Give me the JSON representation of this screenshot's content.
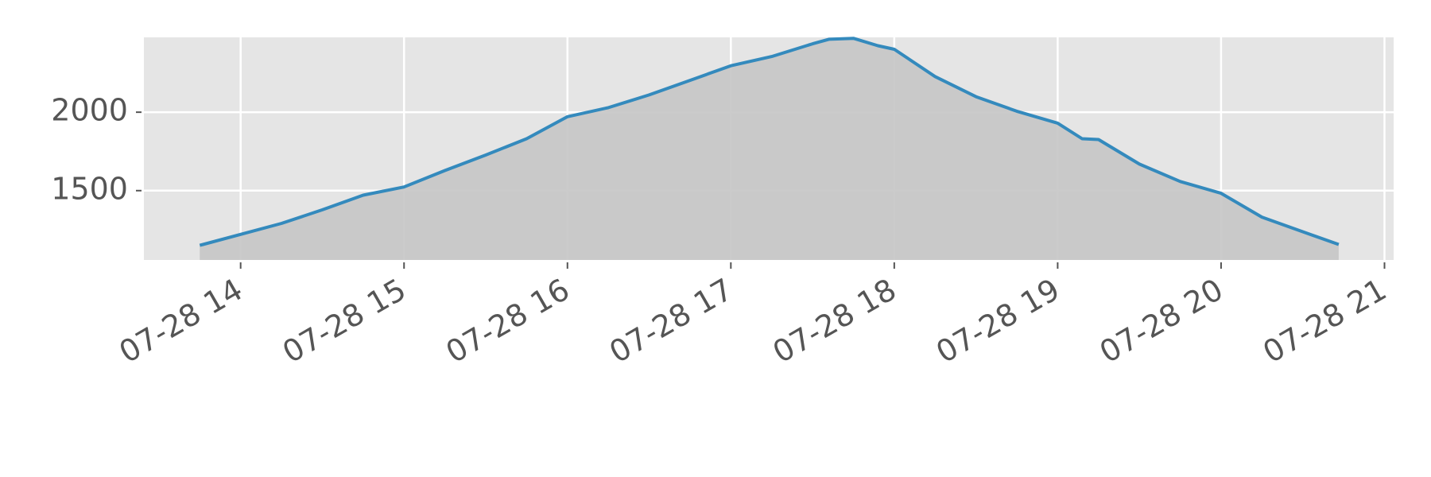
{
  "chart_data": {
    "type": "area",
    "x": [
      13.75,
      14.0,
      14.25,
      14.5,
      14.75,
      15.0,
      15.25,
      15.5,
      15.75,
      16.0,
      16.25,
      16.5,
      16.75,
      17.0,
      17.25,
      17.5,
      17.6,
      17.75,
      17.9,
      18.0,
      18.25,
      18.5,
      18.75,
      19.0,
      19.15,
      19.25,
      19.5,
      19.75,
      20.0,
      20.25,
      20.5,
      20.72
    ],
    "series": [
      {
        "color": "#348abd",
        "fill": "#c5c5c5",
        "values": [
          1151,
          1221,
          1291,
          1378,
          1471,
          1523,
          1628,
          1727,
          1831,
          1971,
          2029,
          2110,
          2203,
          2296,
          2355,
          2436,
          2465,
          2471,
          2424,
          2401,
          2227,
          2099,
          2006,
          1930,
          1831,
          1826,
          1669,
          1558,
          1483,
          1331,
          1238,
          1157
        ]
      }
    ],
    "xlim": [
      13.408,
      21.056
    ],
    "xticks": [
      {
        "value": 14,
        "label": "07-28 14"
      },
      {
        "value": 15,
        "label": "07-28 15"
      },
      {
        "value": 16,
        "label": "07-28 16"
      },
      {
        "value": 17,
        "label": "07-28 17"
      },
      {
        "value": 18,
        "label": "07-28 18"
      },
      {
        "value": 19,
        "label": "07-28 19"
      },
      {
        "value": 20,
        "label": "07-28 20"
      },
      {
        "value": 21,
        "label": "07-28 21"
      }
    ],
    "ylim": [
      1058,
      2477
    ],
    "yticks": [
      1500,
      2000
    ],
    "grid": true
  }
}
